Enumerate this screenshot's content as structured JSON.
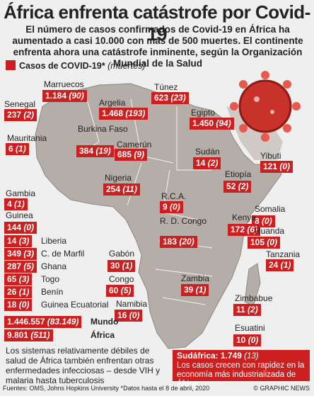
{
  "title": "África enfrenta catástrofe por Covid-19",
  "subtitle": "El número de casos confirmados de Covid-19 en África ha aumentado a casi 10.000 con más de 500 muertes. El continente enfrenta ahora una catástrofe inminente, según la Organización Mundial de la Salud",
  "legend": {
    "label": "Casos de COVID-19*",
    "sub": "(muertes)"
  },
  "colors": {
    "marker": "#cc2020",
    "land": "#b5aea8",
    "sea": "#efefef",
    "virus": "#c8322a"
  },
  "countries_left": [
    {
      "name": "Gambia",
      "cases": "4",
      "deaths": "(1)"
    },
    {
      "name": "Guinea",
      "cases": "144",
      "deaths": "(0)"
    },
    {
      "name": "Liberia",
      "cases": "14",
      "deaths": "(3)"
    },
    {
      "name": "C. de Marfil",
      "cases": "349",
      "deaths": "(3)"
    },
    {
      "name": "Ghana",
      "cases": "287",
      "deaths": "(5)"
    },
    {
      "name": "Togo",
      "cases": "65",
      "deaths": "(3)"
    },
    {
      "name": "Benín",
      "cases": "26",
      "deaths": "(1)"
    },
    {
      "name": "Guinea Ecuatorial",
      "cases": "18",
      "deaths": "(0)"
    }
  ],
  "countries_map": [
    {
      "name": "Senegal",
      "cases": "237",
      "deaths": "(2)"
    },
    {
      "name": "Marruecos",
      "cases": "1.184",
      "deaths": "(90)"
    },
    {
      "name": "Mauritania",
      "cases": "6",
      "deaths": "(1)"
    },
    {
      "name": "Burkina Faso",
      "cases": "384",
      "deaths": "(19)"
    },
    {
      "name": "Argelia",
      "cases": "1.468",
      "deaths": "(193)"
    },
    {
      "name": "Túnez",
      "cases": "623",
      "deaths": "(23)"
    },
    {
      "name": "Egipto",
      "cases": "1.450",
      "deaths": "(94)"
    },
    {
      "name": "Camerún",
      "cases": "685",
      "deaths": "(9)"
    },
    {
      "name": "Sudán",
      "cases": "14",
      "deaths": "(2)"
    },
    {
      "name": "Yibuti",
      "cases": "121",
      "deaths": "(0)"
    },
    {
      "name": "Nigeria",
      "cases": "254",
      "deaths": "(11)"
    },
    {
      "name": "Etiopía",
      "cases": "52",
      "deaths": "(2)"
    },
    {
      "name": "R.C.A.",
      "cases": "9",
      "deaths": "(0)"
    },
    {
      "name": "Somalia",
      "cases": "8",
      "deaths": "(0)"
    },
    {
      "name": "R. D. Congo",
      "cases": "183",
      "deaths": "(20)"
    },
    {
      "name": "Kenya",
      "cases": "172",
      "deaths": "(6)"
    },
    {
      "name": "Ruanda",
      "cases": "105",
      "deaths": "(0)"
    },
    {
      "name": "Tanzania",
      "cases": "24",
      "deaths": "(1)"
    },
    {
      "name": "Gabón",
      "cases": "30",
      "deaths": "(1)"
    },
    {
      "name": "Congo",
      "cases": "60",
      "deaths": "(5)"
    },
    {
      "name": "Zambia",
      "cases": "39",
      "deaths": "(1)"
    },
    {
      "name": "Namibia",
      "cases": "16",
      "deaths": "(0)"
    },
    {
      "name": "Zimbabue",
      "cases": "11",
      "deaths": "(2)"
    },
    {
      "name": "Esuatini",
      "cases": "10",
      "deaths": "(0)"
    }
  ],
  "totals": {
    "world_cases": "1.446.557",
    "world_deaths": "(83.149)",
    "world_label": "Mundo",
    "africa_cases": "9.801",
    "africa_deaths": "(511)",
    "africa_label": "África"
  },
  "south_africa": {
    "name": "Sudáfrica:",
    "cases": "1.749",
    "deaths": "(13)",
    "note": "Los casos crecen con rapidez en la economía más industrializada de África"
  },
  "note": "Los sistemas relativamente débiles de salud de África también enfrentan otras enfermedades infecciosas – desde VIH y malaria hasta tuberculosis",
  "source": "Fuentes: OMS, Johns Hopkins University  *Datos hasta el 8 de abril, 2020",
  "credit": "© GRAPHIC NEWS"
}
